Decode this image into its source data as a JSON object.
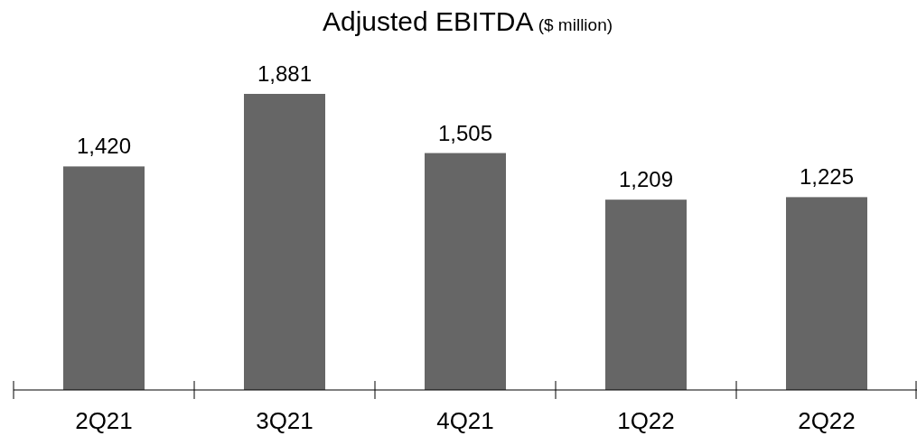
{
  "chart_data": {
    "type": "bar",
    "title": "Adjusted EBITDA",
    "subtitle": "($ million)",
    "categories": [
      "2Q21",
      "3Q21",
      "4Q21",
      "1Q22",
      "2Q22"
    ],
    "values": [
      1420,
      1881,
      1505,
      1209,
      1225
    ],
    "color": "#666666",
    "value_labels": [
      "1,420",
      "1,881",
      "1,505",
      "1,209",
      "1,225"
    ]
  }
}
